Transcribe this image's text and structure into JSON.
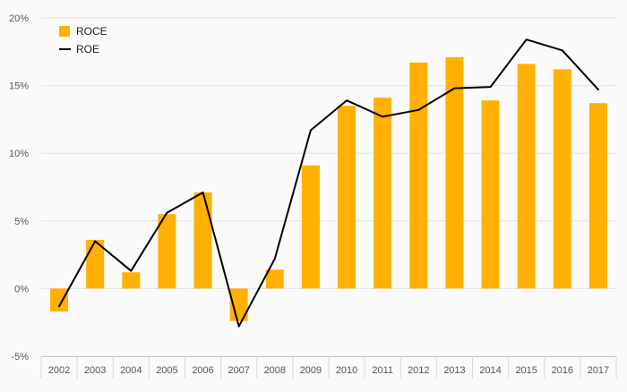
{
  "chart_data": {
    "type": "bar",
    "categories": [
      "2002",
      "2003",
      "2004",
      "2005",
      "2006",
      "2007",
      "2008",
      "2009",
      "2010",
      "2011",
      "2012",
      "2013",
      "2014",
      "2015",
      "2016",
      "2017"
    ],
    "series": [
      {
        "name": "ROCE",
        "type": "bar",
        "color": "#ffb000",
        "values": [
          -1.7,
          3.6,
          1.2,
          5.5,
          7.1,
          -2.4,
          1.4,
          9.1,
          13.5,
          14.1,
          16.7,
          17.1,
          13.9,
          16.6,
          16.2,
          13.7
        ]
      },
      {
        "name": "ROE",
        "type": "line",
        "color": "#000000",
        "values": [
          -1.3,
          3.5,
          1.3,
          5.6,
          7.1,
          -2.8,
          2.2,
          11.7,
          13.9,
          12.7,
          13.2,
          14.8,
          14.9,
          18.4,
          17.6,
          14.7
        ]
      }
    ],
    "ylim": [
      -5,
      20
    ],
    "yticks": [
      -5,
      0,
      5,
      10,
      15,
      20
    ],
    "ytick_labels": [
      "-5%",
      "0%",
      "5%",
      "10%",
      "15%",
      "20%"
    ],
    "grid": true,
    "legend": "top-left",
    "title": "",
    "xlabel": "",
    "ylabel": ""
  }
}
